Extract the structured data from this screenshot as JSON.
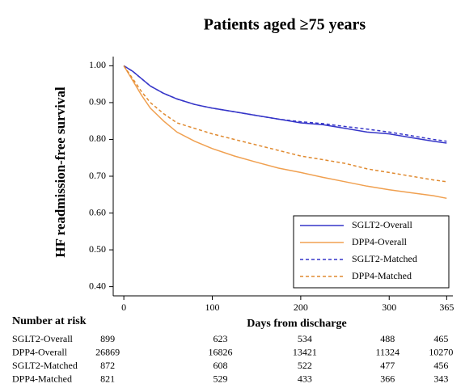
{
  "chart_data": {
    "type": "line",
    "title": "Patients aged ≥75 years",
    "xlabel": "Days from discharge",
    "ylabel": "HF readmission-free survival",
    "x": [
      0,
      10,
      20,
      30,
      45,
      60,
      80,
      100,
      125,
      150,
      175,
      200,
      225,
      250,
      275,
      300,
      325,
      350,
      365
    ],
    "xlim": [
      -12,
      372
    ],
    "xticks": [
      0,
      100,
      200,
      300,
      365
    ],
    "ylim": [
      0.375,
      1.025
    ],
    "yticks": [
      {
        "value": 1.0,
        "label": "1.00"
      },
      {
        "value": 0.9,
        "label": "0.90"
      },
      {
        "value": 0.8,
        "label": "0.80"
      },
      {
        "value": 0.7,
        "label": "0.70"
      },
      {
        "value": 0.6,
        "label": "0.60"
      },
      {
        "value": 0.5,
        "label": "0.50"
      },
      {
        "value": 0.4,
        "label": "0.40"
      }
    ],
    "legend": "lower right",
    "series": [
      {
        "name": "SGLT2-Overall",
        "color": "#3535c8",
        "linestyle": "solid",
        "values": [
          1.0,
          0.985,
          0.965,
          0.945,
          0.925,
          0.91,
          0.895,
          0.885,
          0.875,
          0.865,
          0.855,
          0.845,
          0.84,
          0.83,
          0.82,
          0.815,
          0.805,
          0.795,
          0.79
        ]
      },
      {
        "name": "DPP4-Overall",
        "color": "#f0a050",
        "linestyle": "solid",
        "values": [
          1.0,
          0.96,
          0.92,
          0.885,
          0.85,
          0.82,
          0.795,
          0.775,
          0.755,
          0.738,
          0.722,
          0.71,
          0.697,
          0.685,
          0.673,
          0.663,
          0.655,
          0.647,
          0.64
        ]
      },
      {
        "name": "SGLT2-Matched",
        "color": "#3535c8",
        "linestyle": "dashed",
        "values": [
          1.0,
          0.985,
          0.965,
          0.945,
          0.925,
          0.91,
          0.895,
          0.885,
          0.875,
          0.865,
          0.855,
          0.848,
          0.843,
          0.835,
          0.828,
          0.82,
          0.81,
          0.8,
          0.795
        ]
      },
      {
        "name": "DPP4-Matched",
        "color": "#e08a30",
        "linestyle": "dashed",
        "values": [
          1.0,
          0.965,
          0.93,
          0.9,
          0.87,
          0.845,
          0.83,
          0.815,
          0.8,
          0.785,
          0.77,
          0.755,
          0.745,
          0.735,
          0.72,
          0.71,
          0.7,
          0.69,
          0.685
        ]
      }
    ],
    "risk_table": {
      "title": "Number at risk",
      "rows": [
        {
          "name": "SGLT2-Overall",
          "values": [
            899,
            623,
            534,
            488,
            465
          ]
        },
        {
          "name": "DPP4-Overall",
          "values": [
            26869,
            16826,
            13421,
            11324,
            10270
          ]
        },
        {
          "name": "SGLT2-Matched",
          "values": [
            872,
            608,
            522,
            477,
            456
          ]
        },
        {
          "name": "DPP4-Matched",
          "values": [
            821,
            529,
            433,
            366,
            343
          ]
        }
      ]
    }
  }
}
